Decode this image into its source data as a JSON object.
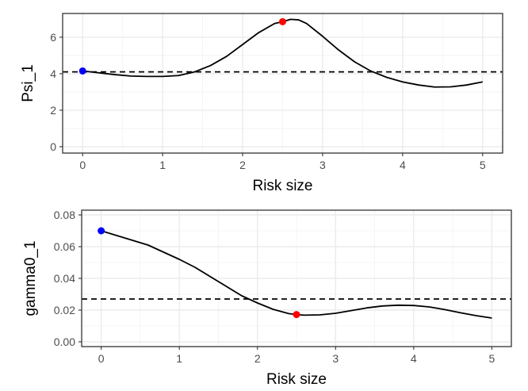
{
  "chart_data": [
    {
      "type": "line",
      "xlabel": "Risk size",
      "ylabel": "Psi_1",
      "xlim": [
        -0.25,
        5.25
      ],
      "ylim": [
        -0.35,
        7.3
      ],
      "x_ticks": [
        0,
        1,
        2,
        3,
        4,
        5
      ],
      "y_ticks": [
        0,
        2,
        4,
        6
      ],
      "grid": true,
      "series": [
        {
          "x": [
            0,
            0.2,
            0.4,
            0.6,
            0.8,
            1.0,
            1.2,
            1.4,
            1.6,
            1.8,
            2.0,
            2.2,
            2.4,
            2.5,
            2.6,
            2.7,
            2.8,
            3.0,
            3.2,
            3.4,
            3.6,
            3.8,
            4.0,
            4.2,
            4.4,
            4.6,
            4.8,
            5.0
          ],
          "values": [
            4.15,
            4.05,
            3.95,
            3.87,
            3.85,
            3.85,
            3.9,
            4.1,
            4.45,
            4.95,
            5.6,
            6.25,
            6.75,
            6.85,
            6.98,
            6.95,
            6.75,
            6.05,
            5.3,
            4.65,
            4.15,
            3.8,
            3.55,
            3.38,
            3.27,
            3.28,
            3.38,
            3.55
          ]
        }
      ],
      "hline": 4.1,
      "points": [
        {
          "x": 0,
          "y": 4.15,
          "color": "#0000ff"
        },
        {
          "x": 2.5,
          "y": 6.85,
          "color": "#ff0000"
        }
      ]
    },
    {
      "type": "line",
      "xlabel": "Risk size",
      "ylabel": "gamma0_1",
      "xlim": [
        -0.25,
        5.25
      ],
      "ylim": [
        -0.003,
        0.083
      ],
      "x_ticks": [
        0,
        1,
        2,
        3,
        4,
        5
      ],
      "y_ticks": [
        0.0,
        0.02,
        0.04,
        0.06,
        0.08
      ],
      "y_tick_labels": [
        "0.00",
        "0.02",
        "0.04",
        "0.06",
        "0.08"
      ],
      "grid": true,
      "series": [
        {
          "x": [
            0,
            0.2,
            0.4,
            0.6,
            0.8,
            1.0,
            1.2,
            1.4,
            1.6,
            1.8,
            2.0,
            2.2,
            2.4,
            2.5,
            2.6,
            2.8,
            3.0,
            3.2,
            3.4,
            3.6,
            3.8,
            4.0,
            4.2,
            4.4,
            4.6,
            4.8,
            5.0
          ],
          "values": [
            0.07,
            0.067,
            0.064,
            0.061,
            0.0565,
            0.052,
            0.047,
            0.041,
            0.035,
            0.029,
            0.0245,
            0.0205,
            0.0178,
            0.0172,
            0.0168,
            0.017,
            0.018,
            0.0197,
            0.0214,
            0.0226,
            0.0231,
            0.0229,
            0.022,
            0.0203,
            0.0183,
            0.0165,
            0.015
          ]
        }
      ],
      "hline": 0.027,
      "points": [
        {
          "x": 0,
          "y": 0.07,
          "color": "#0000ff"
        },
        {
          "x": 2.5,
          "y": 0.0172,
          "color": "#ff0000"
        }
      ]
    }
  ]
}
